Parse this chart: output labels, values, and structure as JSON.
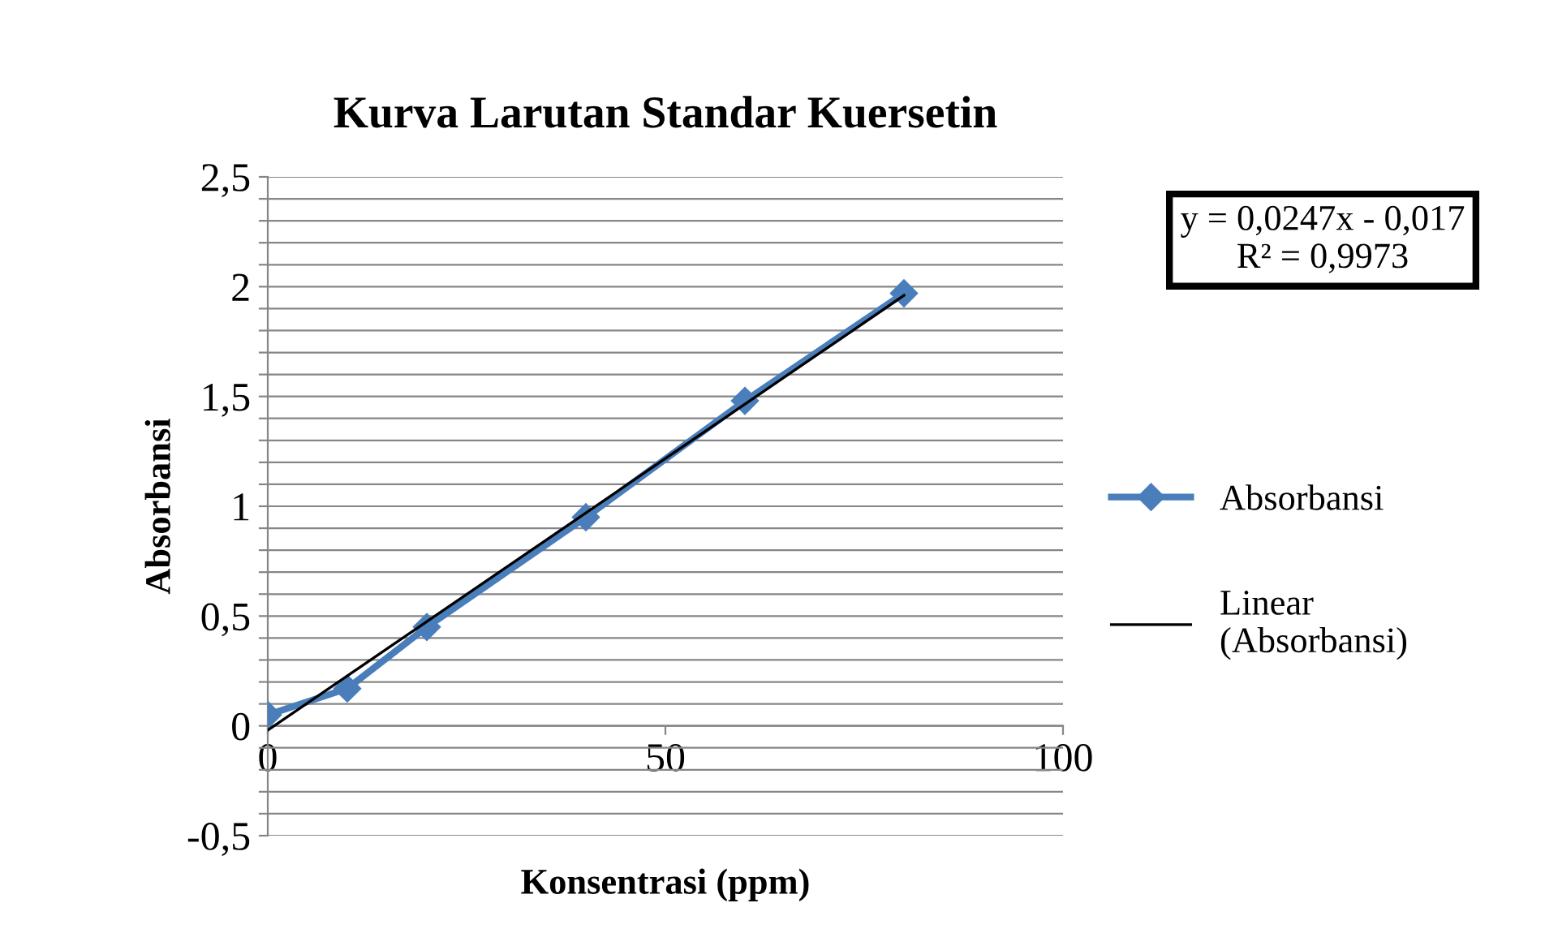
{
  "chart_data": {
    "type": "line",
    "title": "Kurva Larutan Standar Kuersetin",
    "xlabel": "Konsentrasi (ppm)",
    "ylabel": "Absorbansi",
    "series": [
      {
        "name": "Absorbansi",
        "color": "#4a7ebb",
        "x": [
          0,
          10,
          20,
          40,
          60,
          80
        ],
        "values": [
          0.05,
          0.17,
          0.45,
          0.95,
          1.48,
          1.97
        ],
        "marker": "diamond"
      },
      {
        "name": "Linear (Absorbansi)",
        "color": "#000000",
        "x": [
          0,
          80
        ],
        "values": [
          -0.02,
          1.96
        ],
        "marker": "none"
      }
    ],
    "xlim": [
      0,
      100
    ],
    "xticks": [
      0,
      50,
      100
    ],
    "ylim": [
      -0.5,
      2.5
    ],
    "yticks": [
      {
        "value": -0.5,
        "label": "-0,5"
      },
      {
        "value": -0.4,
        "label": null
      },
      {
        "value": -0.3,
        "label": null
      },
      {
        "value": -0.2,
        "label": null
      },
      {
        "value": -0.1,
        "label": null
      },
      0,
      {
        "value": 0.1,
        "label": null
      },
      {
        "value": 0.2,
        "label": null
      },
      {
        "value": 0.3,
        "label": null
      },
      {
        "value": 0.4,
        "label": null
      },
      {
        "value": 0.5,
        "label": "0,5"
      },
      {
        "value": 0.6,
        "label": null
      },
      {
        "value": 0.7,
        "label": null
      },
      {
        "value": 0.8,
        "label": null
      },
      {
        "value": 0.9,
        "label": null
      },
      1,
      {
        "value": 1.1,
        "label": null
      },
      {
        "value": 1.2,
        "label": null
      },
      {
        "value": 1.3,
        "label": null
      },
      {
        "value": 1.4,
        "label": null
      },
      {
        "value": 1.5,
        "label": "1,5"
      },
      {
        "value": 1.6,
        "label": null
      },
      {
        "value": 1.7,
        "label": null
      },
      {
        "value": 1.8,
        "label": null
      },
      {
        "value": 1.9,
        "label": null
      },
      2,
      {
        "value": 2.1,
        "label": null
      },
      {
        "value": 2.2,
        "label": null
      },
      {
        "value": 2.3,
        "label": null
      },
      {
        "value": 2.4,
        "label": null
      },
      {
        "value": 2.5,
        "label": "2,5"
      }
    ],
    "grid": "y",
    "legend": "right",
    "annotations": [
      "y = 0,0247x - 0,017\nR² = 0,9973"
    ]
  }
}
